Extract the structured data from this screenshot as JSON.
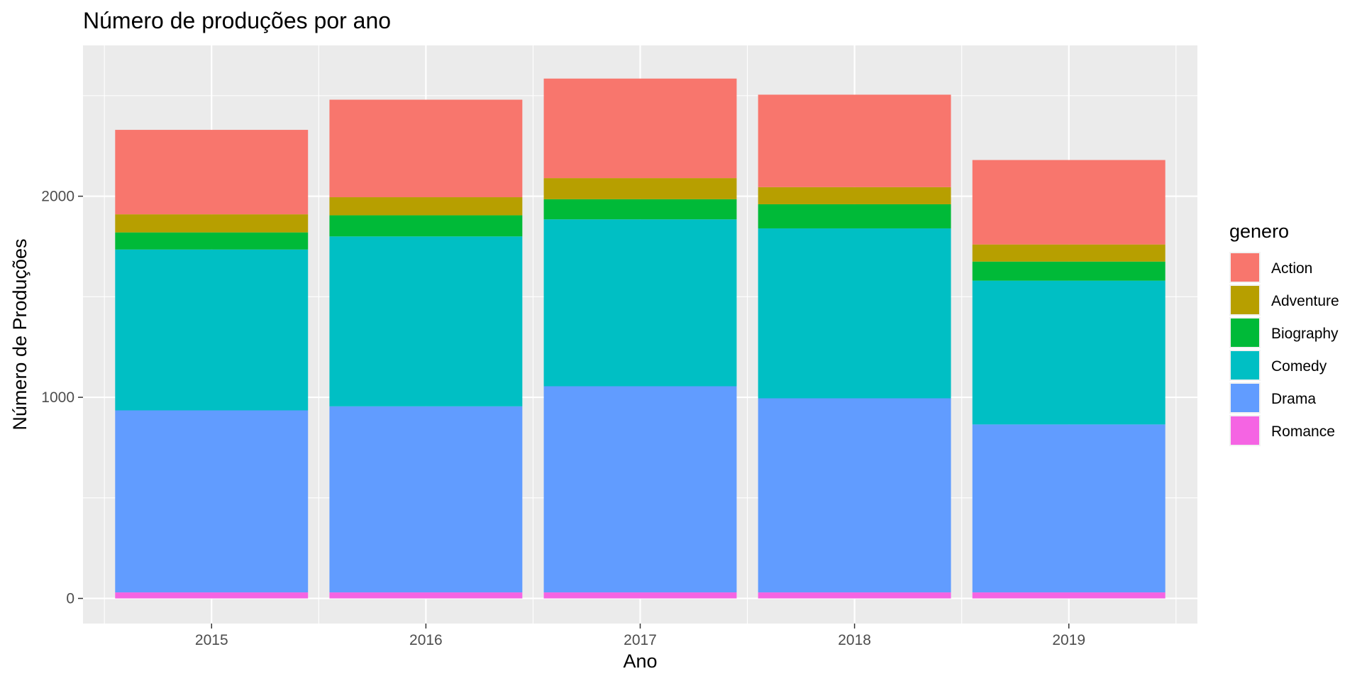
{
  "chart_data": {
    "type": "bar",
    "stacked": true,
    "title": "Número de produções por ano",
    "xlabel": "Ano",
    "ylabel": "Número de Produções",
    "categories": [
      "2015",
      "2016",
      "2017",
      "2018",
      "2019"
    ],
    "ylim": [
      -125,
      2750
    ],
    "yticks": [
      0,
      1000,
      2000
    ],
    "grid": true,
    "legend": {
      "title": "genero",
      "position": "right",
      "entries": [
        "Action",
        "Adventure",
        "Biography",
        "Comedy",
        "Drama",
        "Romance"
      ]
    },
    "series": [
      {
        "name": "Romance",
        "color": "#F564E3",
        "values": [
          30,
          30,
          30,
          30,
          30
        ]
      },
      {
        "name": "Drama",
        "color": "#619CFF",
        "values": [
          905,
          925,
          1025,
          965,
          835
        ]
      },
      {
        "name": "Comedy",
        "color": "#00BFC4",
        "values": [
          800,
          845,
          830,
          845,
          715
        ]
      },
      {
        "name": "Biography",
        "color": "#00BA38",
        "values": [
          85,
          105,
          100,
          120,
          95
        ]
      },
      {
        "name": "Adventure",
        "color": "#B79F00",
        "values": [
          90,
          90,
          105,
          85,
          85
        ]
      },
      {
        "name": "Action",
        "color": "#F8766D",
        "values": [
          420,
          485,
          495,
          460,
          420
        ]
      }
    ]
  }
}
